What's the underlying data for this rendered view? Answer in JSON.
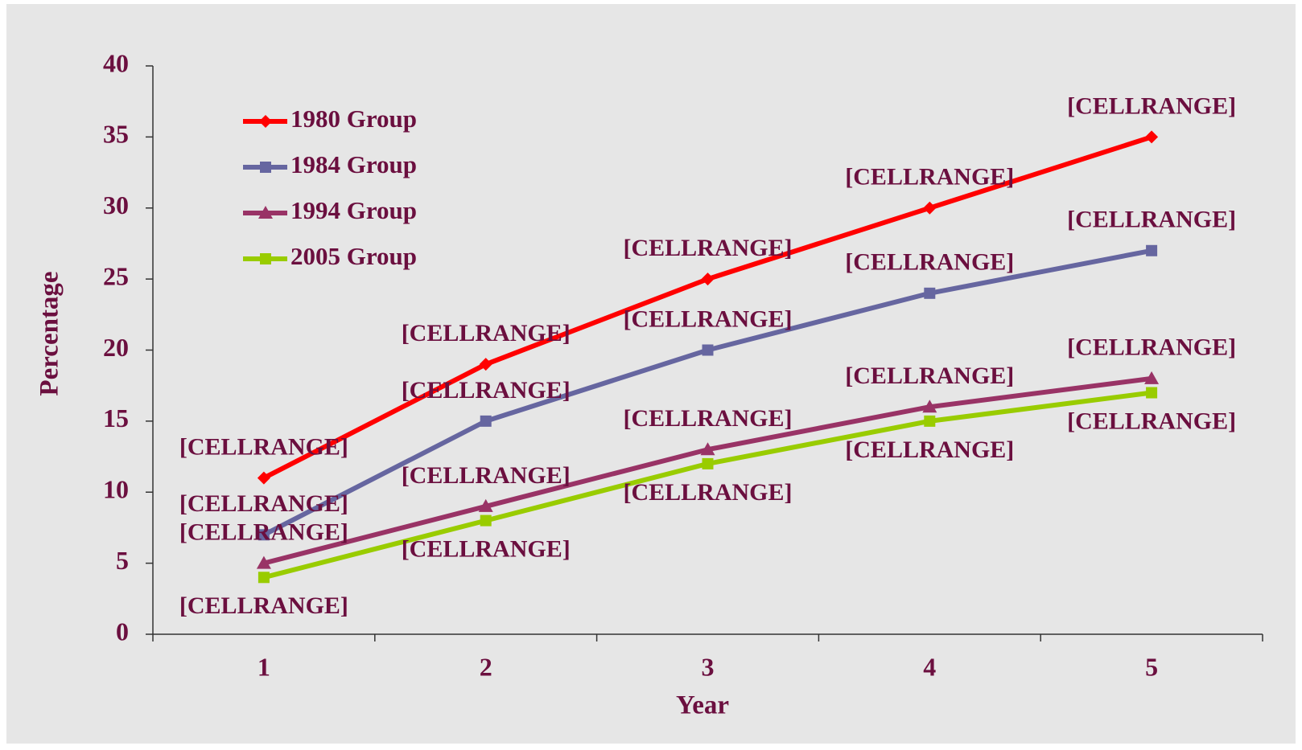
{
  "chart_data": {
    "type": "line",
    "categories": [
      1,
      2,
      3,
      4,
      5
    ],
    "series": [
      {
        "name": "1980 Group",
        "color": "#ff0000",
        "values": [
          11,
          19,
          25,
          30,
          35
        ],
        "value_labels": [
          "[CELLRANGE]",
          "[CELLRANGE]",
          "[CELLRANGE]",
          "[CELLRANGE]",
          "[CELLRANGE]"
        ]
      },
      {
        "name": "1984 Group",
        "color": "#6666a0",
        "values": [
          7,
          15,
          20,
          24,
          27
        ],
        "value_labels": [
          "[CELLRANGE]",
          "[CELLRANGE]",
          "[CELLRANGE]",
          "[CELLRANGE]",
          "[CELLRANGE]"
        ]
      },
      {
        "name": "1994 Group",
        "color": "#993366",
        "values": [
          5,
          9,
          13,
          16,
          18
        ],
        "value_labels": [
          "[CELLRANGE]",
          "[CELLRANGE]",
          "[CELLRANGE]",
          "[CELLRANGE]",
          "[CELLRANGE]"
        ]
      },
      {
        "name": "2005 Group",
        "color": "#99cc00",
        "values": [
          4,
          8,
          12,
          15,
          17
        ],
        "value_labels": [
          "[CELLRANGE]",
          "[CELLRANGE]",
          "[CELLRANGE]",
          "[CELLRANGE]",
          "[CELLRANGE]"
        ]
      }
    ],
    "xlabel": "Year",
    "ylabel": "Percentage",
    "ylim": [
      0,
      40
    ],
    "yticks": [
      0,
      5,
      10,
      15,
      20,
      25,
      30,
      35,
      40
    ],
    "legend": "upper left",
    "grid": false
  }
}
